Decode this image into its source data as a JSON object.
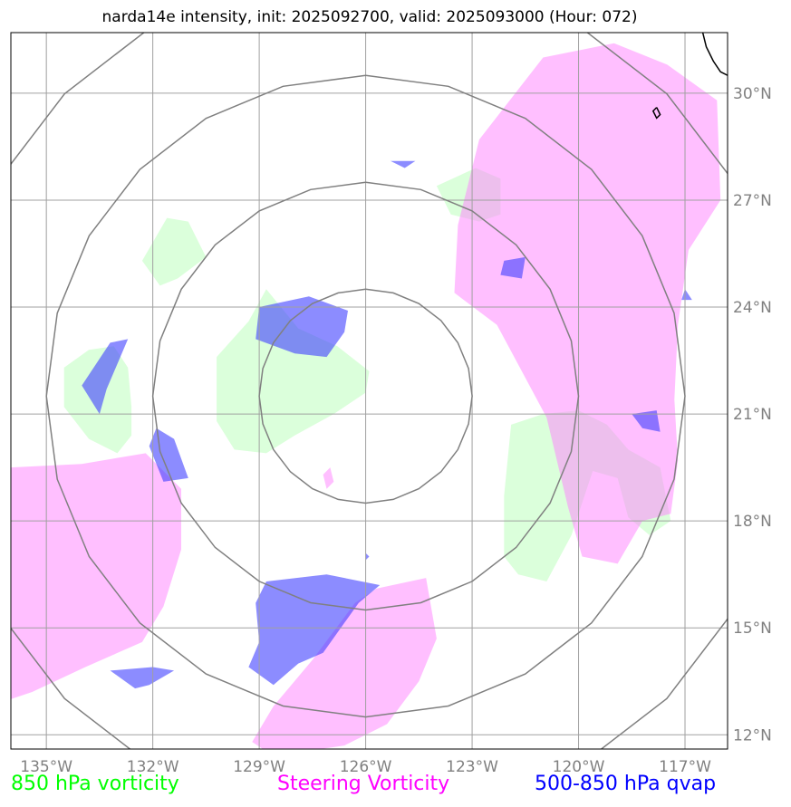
{
  "chart_data": {
    "type": "map",
    "title": "narda14e intensity, init: 2025092700, valid: 2025093000 (Hour: 072)",
    "projection": "polar stereographic centered near 126°W 21°N",
    "extent": {
      "lon": [
        -136.0,
        -115.8
      ],
      "lat": [
        11.6,
        31.7
      ]
    },
    "grid": true,
    "lon_ticks": [
      -135,
      -132,
      -129,
      -126,
      -123,
      -120,
      -117
    ],
    "lon_tick_labels": [
      "135°W",
      "132°W",
      "129°W",
      "126°W",
      "123°W",
      "120°W",
      "117°W"
    ],
    "lat_ticks": [
      12,
      15,
      18,
      21,
      24,
      27,
      30
    ],
    "lat_tick_labels": [
      "12°N",
      "15°N",
      "18°N",
      "21°N",
      "24°N",
      "27°N",
      "30°N"
    ],
    "range_rings": {
      "center": [
        -126.0,
        21.5
      ],
      "radii_deg": [
        3,
        6,
        9,
        12
      ]
    },
    "fields": [
      {
        "name": "850 hPa vorticity",
        "color": "#00ff00",
        "fill": "#ccffcc",
        "areas": [
          [
            [
              -128.8,
              24.5
            ],
            [
              -127.9,
              23.4
            ],
            [
              -126.8,
              22.9
            ],
            [
              -125.9,
              22.2
            ],
            [
              -126.0,
              21.6
            ],
            [
              -126.9,
              21.0
            ],
            [
              -128.0,
              20.4
            ],
            [
              -128.8,
              19.9
            ],
            [
              -129.7,
              20.0
            ],
            [
              -130.2,
              20.8
            ],
            [
              -130.2,
              22.6
            ],
            [
              -129.3,
              23.6
            ]
          ],
          [
            [
              -133.8,
              22.8
            ],
            [
              -133.1,
              22.9
            ],
            [
              -132.7,
              22.3
            ],
            [
              -132.6,
              21.2
            ],
            [
              -132.6,
              20.4
            ],
            [
              -133.0,
              19.9
            ],
            [
              -133.8,
              20.3
            ],
            [
              -134.5,
              21.2
            ],
            [
              -134.5,
              22.3
            ]
          ],
          [
            [
              -121.9,
              20.7
            ],
            [
              -121.0,
              21.0
            ],
            [
              -120.0,
              21.1
            ],
            [
              -119.2,
              20.7
            ],
            [
              -118.6,
              20.0
            ],
            [
              -117.7,
              19.5
            ],
            [
              -117.4,
              18.0
            ],
            [
              -118.0,
              17.6
            ],
            [
              -118.6,
              18.1
            ],
            [
              -118.9,
              19.2
            ],
            [
              -119.6,
              19.4
            ],
            [
              -120.2,
              17.6
            ],
            [
              -120.9,
              16.3
            ],
            [
              -121.7,
              16.5
            ],
            [
              -122.1,
              17.0
            ],
            [
              -122.1,
              18.7
            ]
          ],
          [
            [
              -131.6,
              26.5
            ],
            [
              -131.0,
              26.4
            ],
            [
              -130.5,
              25.4
            ],
            [
              -131.3,
              24.8
            ],
            [
              -131.8,
              24.6
            ],
            [
              -132.3,
              25.3
            ]
          ],
          [
            [
              -122.9,
              27.9
            ],
            [
              -122.2,
              27.6
            ],
            [
              -122.2,
              26.6
            ],
            [
              -122.8,
              26.4
            ],
            [
              -123.6,
              26.6
            ],
            [
              -124.0,
              27.4
            ]
          ]
        ]
      },
      {
        "name": "Steering Vorticity",
        "color": "#ff00ff",
        "fill": "#ff80ff",
        "areas": [
          [
            [
              -121.0,
              31.0
            ],
            [
              -119.0,
              31.4
            ],
            [
              -117.5,
              30.8
            ],
            [
              -116.1,
              29.8
            ],
            [
              -116.0,
              27.0
            ],
            [
              -116.9,
              25.6
            ],
            [
              -117.2,
              23.5
            ],
            [
              -117.3,
              21.4
            ],
            [
              -117.2,
              19.7
            ],
            [
              -117.4,
              18.2
            ],
            [
              -118.2,
              18.0
            ],
            [
              -118.9,
              16.8
            ],
            [
              -119.9,
              17.0
            ],
            [
              -120.3,
              18.4
            ],
            [
              -120.9,
              20.9
            ],
            [
              -122.3,
              23.5
            ],
            [
              -123.5,
              24.4
            ],
            [
              -123.4,
              26.3
            ],
            [
              -122.8,
              28.7
            ]
          ],
          [
            [
              -136.0,
              19.5
            ],
            [
              -134.0,
              19.6
            ],
            [
              -132.2,
              19.9
            ],
            [
              -131.2,
              18.9
            ],
            [
              -131.2,
              17.2
            ],
            [
              -131.7,
              15.6
            ],
            [
              -132.3,
              14.6
            ],
            [
              -133.9,
              13.9
            ],
            [
              -135.4,
              13.2
            ],
            [
              -136.0,
              13.0
            ]
          ],
          [
            [
              -125.7,
              16.1
            ],
            [
              -124.3,
              16.4
            ],
            [
              -124.0,
              14.7
            ],
            [
              -124.5,
              13.5
            ],
            [
              -125.4,
              12.3
            ],
            [
              -126.6,
              11.7
            ],
            [
              -128.6,
              11.4
            ],
            [
              -129.2,
              11.8
            ],
            [
              -128.6,
              12.8
            ],
            [
              -127.5,
              14.1
            ],
            [
              -126.3,
              15.7
            ]
          ],
          [
            [
              -127.0,
              19.5
            ],
            [
              -126.9,
              19.1
            ],
            [
              -127.1,
              18.9
            ],
            [
              -127.2,
              19.3
            ]
          ]
        ]
      },
      {
        "name": "500-850 hPa qvap",
        "color": "#0000ff",
        "fill": "#4040ff",
        "areas": [
          [
            [
              -127.6,
              24.3
            ],
            [
              -126.5,
              23.9
            ],
            [
              -126.6,
              23.3
            ],
            [
              -127.1,
              22.6
            ],
            [
              -128.0,
              22.7
            ],
            [
              -129.1,
              23.1
            ],
            [
              -129.0,
              24.0
            ]
          ],
          [
            [
              -133.2,
              23.0
            ],
            [
              -132.7,
              23.1
            ],
            [
              -133.3,
              21.7
            ],
            [
              -133.5,
              21.0
            ],
            [
              -134.0,
              21.8
            ]
          ],
          [
            [
              -131.9,
              20.6
            ],
            [
              -131.4,
              20.3
            ],
            [
              -131.0,
              19.2
            ],
            [
              -131.7,
              19.1
            ],
            [
              -132.1,
              20.1
            ]
          ],
          [
            [
              -128.8,
              16.3
            ],
            [
              -127.1,
              16.5
            ],
            [
              -125.6,
              16.2
            ],
            [
              -126.2,
              15.7
            ],
            [
              -127.2,
              14.3
            ],
            [
              -127.9,
              14.0
            ],
            [
              -128.6,
              13.4
            ],
            [
              -129.3,
              13.9
            ],
            [
              -129.0,
              14.6
            ],
            [
              -129.1,
              15.7
            ]
          ],
          [
            [
              -133.2,
              13.8
            ],
            [
              -132.0,
              13.9
            ],
            [
              -131.4,
              13.8
            ],
            [
              -132.1,
              13.4
            ],
            [
              -132.5,
              13.3
            ]
          ],
          [
            [
              -122.1,
              25.3
            ],
            [
              -121.5,
              25.4
            ],
            [
              -121.6,
              24.8
            ],
            [
              -122.2,
              24.9
            ]
          ],
          [
            [
              -118.5,
              21.0
            ],
            [
              -117.8,
              21.1
            ],
            [
              -117.7,
              20.5
            ],
            [
              -118.2,
              20.6
            ]
          ],
          [
            [
              -117.1,
              24.2
            ],
            [
              -116.8,
              24.2
            ],
            [
              -117.0,
              24.5
            ]
          ],
          [
            [
              -125.3,
              28.1
            ],
            [
              -124.6,
              28.1
            ],
            [
              -124.9,
              27.9
            ]
          ],
          [
            [
              -126.0,
              17.1
            ],
            [
              -125.9,
              17.0
            ],
            [
              -126.0,
              16.9
            ]
          ]
        ]
      }
    ],
    "coastline": [
      [
        [
          -116.5,
          31.7
        ],
        [
          -116.4,
          31.3
        ],
        [
          -116.2,
          30.9
        ],
        [
          -116.0,
          30.6
        ],
        [
          -115.8,
          30.5
        ]
      ],
      [
        [
          -117.8,
          29.6
        ],
        [
          -117.7,
          29.4
        ],
        [
          -117.8,
          29.3
        ],
        [
          -117.9,
          29.5
        ],
        [
          -117.8,
          29.6
        ]
      ]
    ],
    "legend": [
      "850 hPa vorticity",
      "Steering Vorticity",
      "500-850 hPa qvap"
    ]
  }
}
